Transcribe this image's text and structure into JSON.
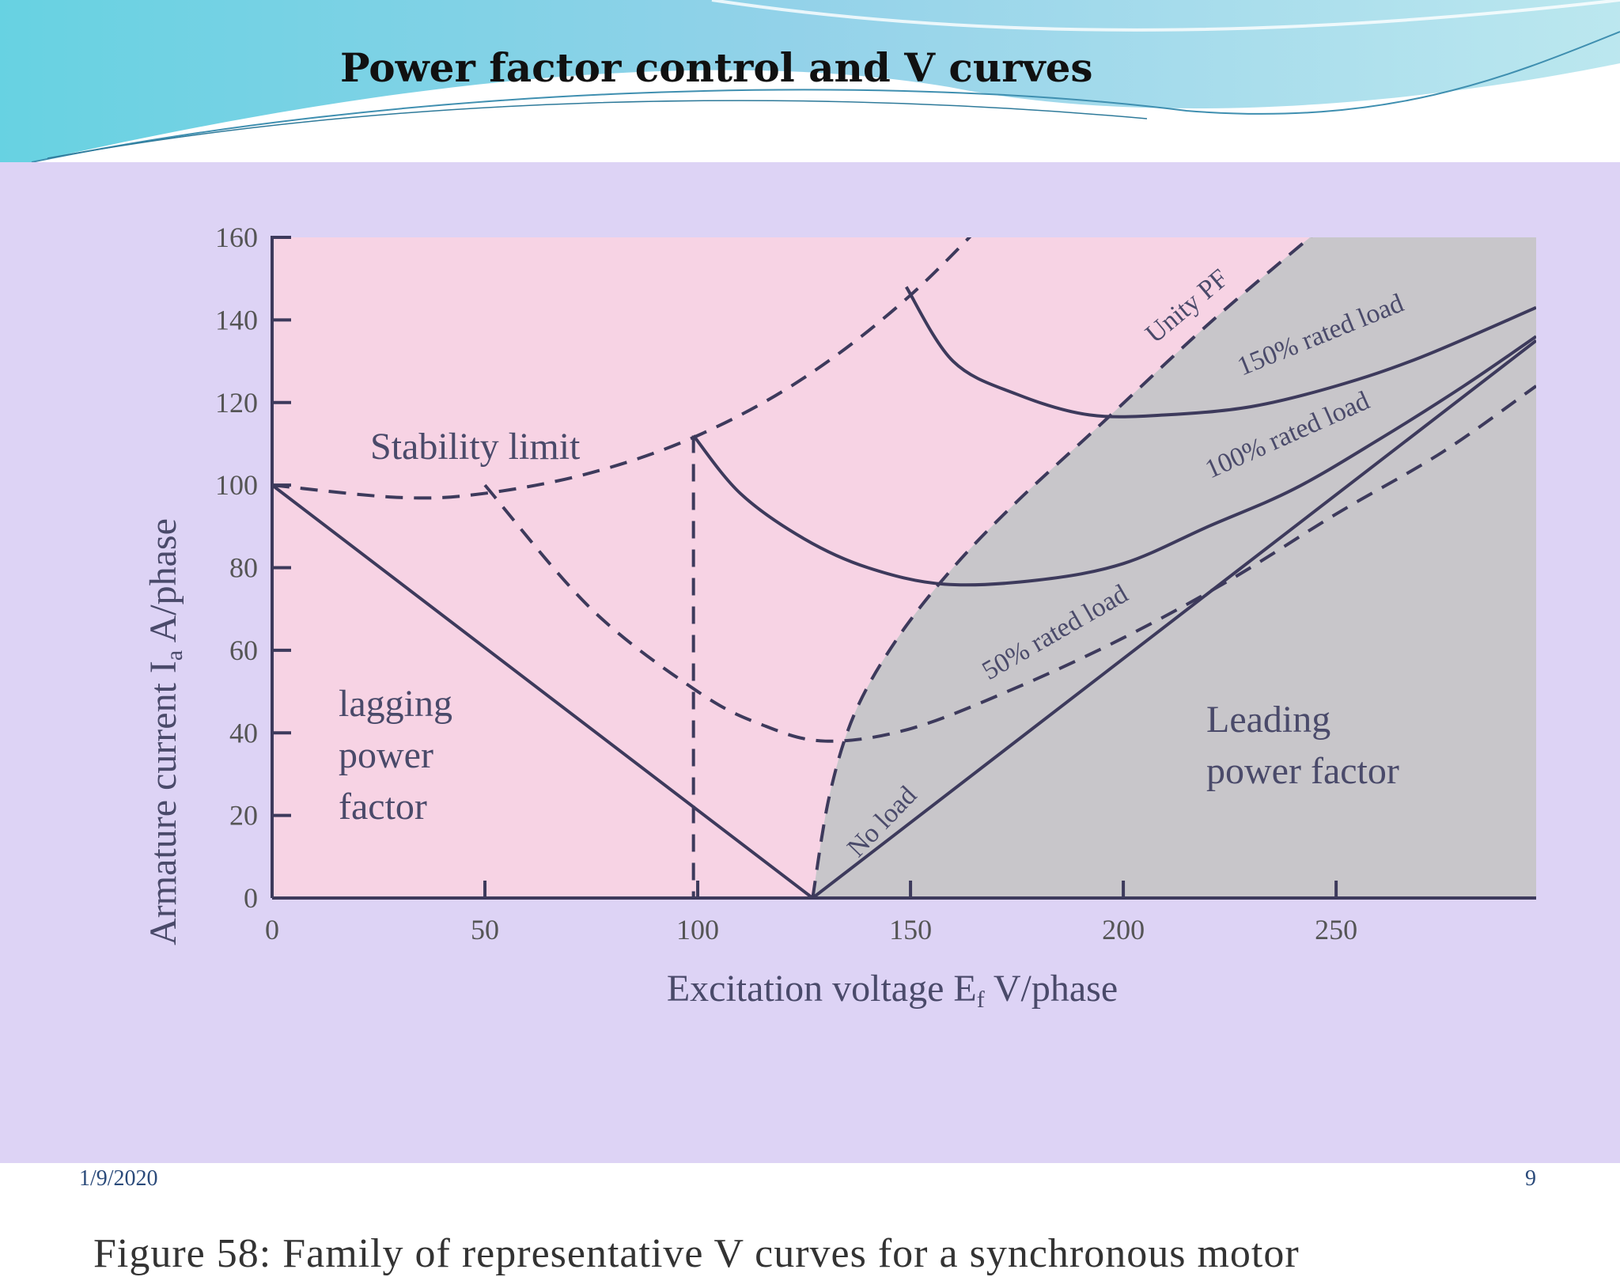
{
  "slide": {
    "title": "Power factor control and V curves",
    "caption": "Figure 58: Family of representative V curves for a synchronous motor",
    "date": "1/9/2020",
    "page_number": "9"
  },
  "colors": {
    "panel_bg": "#ddd3f5",
    "lagging_region": "#f7d3e4",
    "leading_region": "#c8c6ca",
    "curve": "#3d3a5c",
    "header_wave": "#7fcde0"
  },
  "chart_data": {
    "type": "line",
    "xlabel": "Excitation voltage E",
    "xlabel_sub": "f",
    "xlabel_unit": " V/phase",
    "ylabel": "Armature current I",
    "ylabel_sub": "a",
    "ylabel_unit": " A/phase",
    "xlim": [
      0,
      297
    ],
    "ylim": [
      0,
      160
    ],
    "x_ticks": [
      "0",
      "50",
      "100",
      "150",
      "200",
      "250"
    ],
    "x_tick_values": [
      0,
      50,
      100,
      150,
      200,
      250
    ],
    "y_ticks": [
      "0",
      "20",
      "40",
      "60",
      "80",
      "100",
      "120",
      "140",
      "160"
    ],
    "y_tick_values": [
      0,
      20,
      40,
      60,
      80,
      100,
      120,
      140,
      160
    ],
    "regions": {
      "lagging": "lagging power factor",
      "leading": "Leading power factor"
    },
    "region_lagging_lines": [
      "lagging",
      "power",
      "factor"
    ],
    "region_leading_lines": [
      "Leading",
      "power factor"
    ],
    "annotations": {
      "stability_limit": "Stability limit",
      "unity_pf": "Unity PF"
    },
    "series": [
      {
        "name": "No load",
        "style": "solid",
        "x": [
          0,
          127,
          297
        ],
        "y": [
          100,
          0,
          135
        ]
      },
      {
        "name": "50% rated load",
        "style": "dashed",
        "x": [
          50,
          75,
          100,
          115,
          130,
          150,
          175,
          200,
          225,
          250,
          275,
          297
        ],
        "y": [
          100,
          70,
          50,
          42,
          38,
          41,
          51,
          63,
          77,
          93,
          108,
          124
        ]
      },
      {
        "name": "100% rated load",
        "style": "solid",
        "x": [
          99,
          110,
          125,
          140,
          158,
          180,
          200,
          220,
          240,
          260,
          280,
          297
        ],
        "y": [
          112,
          98,
          87,
          80,
          76,
          77,
          81,
          90,
          99,
          111,
          124,
          136
        ]
      },
      {
        "name": "150% rated load",
        "style": "solid",
        "x": [
          149,
          160,
          175,
          192,
          210,
          230,
          250,
          270,
          297
        ],
        "y": [
          148,
          130,
          122,
          117,
          117,
          119,
          124,
          131,
          143
        ]
      },
      {
        "name": "Stability limit",
        "style": "dashed",
        "x": [
          0,
          30,
          50,
          75,
          100,
          125,
          150,
          175
        ],
        "y": [
          100,
          97,
          98,
          103,
          112,
          126,
          146,
          172
        ]
      },
      {
        "name": "Unity PF",
        "style": "dashed",
        "x": [
          127,
          131,
          137,
          147,
          160,
          175,
          195,
          220,
          245
        ],
        "y": [
          0,
          25,
          45,
          63,
          80,
          96,
          115,
          139,
          161
        ]
      }
    ],
    "stability_vertical_x": 99
  }
}
